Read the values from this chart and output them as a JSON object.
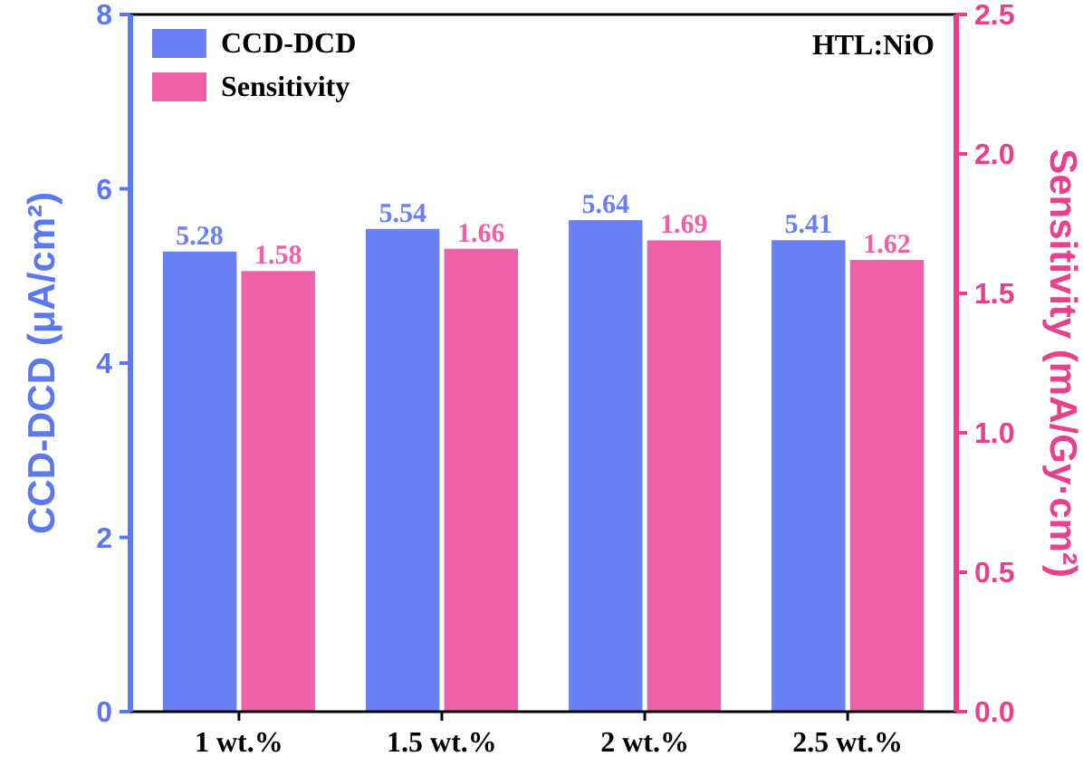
{
  "chart_data": {
    "type": "bar",
    "categories": [
      "1 wt.%",
      "1.5 wt.%",
      "2 wt.%",
      "2.5 wt.%"
    ],
    "series": [
      {
        "name": "CCD-DCD",
        "color": "#6a80f4",
        "values": [
          5.28,
          5.54,
          5.64,
          5.41
        ]
      },
      {
        "name": "Sensitivity",
        "color": "#f060a8",
        "values": [
          1.58,
          1.66,
          1.69,
          1.62
        ],
        "axis": "y2"
      }
    ],
    "ylabel": "CCD-DCD (μA/cm²)",
    "y2label": "Sensitivity (mA/Gy·cm²)",
    "ylim": [
      0,
      8
    ],
    "yticks": [
      0,
      2,
      4,
      6,
      8
    ],
    "y2lim": [
      0,
      2.5
    ],
    "y2ticks": [
      {
        "value": 0,
        "label": "0.0"
      },
      0.5,
      {
        "value": 1,
        "label": "1.0"
      },
      1.5,
      {
        "value": 2,
        "label": "2.0"
      },
      2.5
    ],
    "annotations": [
      "HTL:NiO"
    ],
    "data_labels": true,
    "legend": "top left"
  }
}
